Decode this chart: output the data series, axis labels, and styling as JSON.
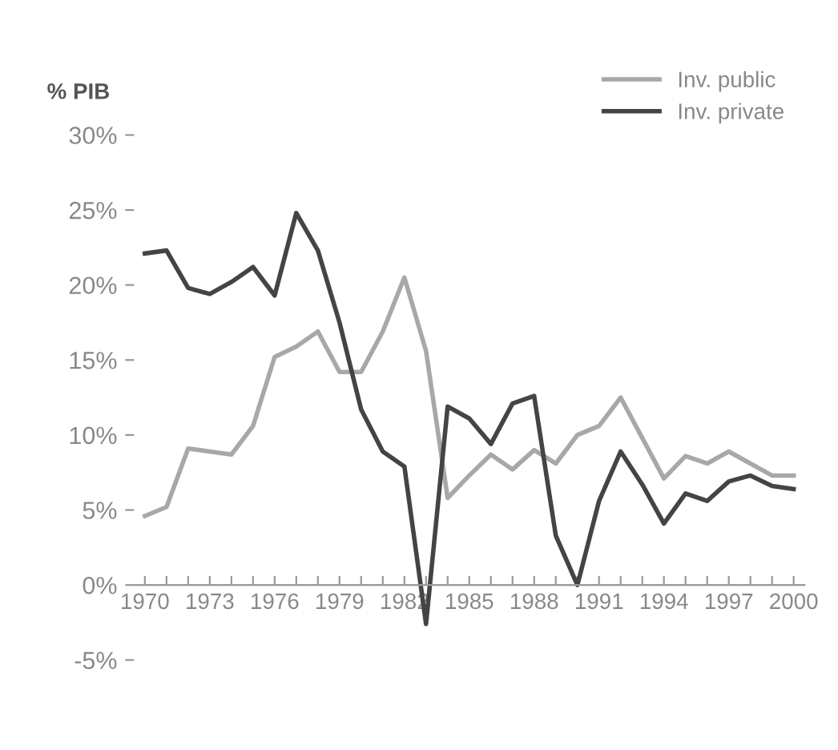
{
  "chart_data": {
    "type": "line",
    "ylabel": "% PIB",
    "x": [
      1970,
      1971,
      1972,
      1973,
      1974,
      1975,
      1976,
      1977,
      1978,
      1979,
      1980,
      1981,
      1982,
      1983,
      1984,
      1985,
      1986,
      1987,
      1988,
      1989,
      1990,
      1991,
      1992,
      1993,
      1994,
      1995,
      1996,
      1997,
      1998,
      1999,
      2000
    ],
    "series": [
      {
        "name": "Inv. public",
        "color": "#a8a8a8",
        "values": [
          4.6,
          5.2,
          9.1,
          8.9,
          8.7,
          10.6,
          15.2,
          15.9,
          16.9,
          14.2,
          14.2,
          16.9,
          20.5,
          15.6,
          5.8,
          7.3,
          8.7,
          7.7,
          9.0,
          8.1,
          10.0,
          10.6,
          12.5,
          9.8,
          7.1,
          8.6,
          8.1,
          8.9,
          8.1,
          7.3,
          7.3
        ]
      },
      {
        "name": "Inv. private",
        "color": "#444444",
        "values": [
          22.1,
          22.3,
          19.8,
          19.4,
          20.2,
          21.2,
          19.3,
          24.8,
          22.3,
          17.5,
          11.7,
          8.9,
          7.9,
          -2.6,
          11.9,
          11.1,
          9.4,
          12.1,
          12.6,
          3.3,
          0.0,
          5.6,
          8.9,
          6.7,
          4.1,
          6.1,
          5.6,
          6.9,
          7.3,
          6.6,
          6.4
        ]
      }
    ],
    "ylim": [
      -5,
      30
    ],
    "yticks": [
      {
        "value": -5,
        "label": "-5%"
      },
      {
        "value": 0,
        "label": "0%"
      },
      {
        "value": 5,
        "label": "5%"
      },
      {
        "value": 10,
        "label": "10%"
      },
      {
        "value": 15,
        "label": "15%"
      },
      {
        "value": 20,
        "label": "20%"
      },
      {
        "value": 25,
        "label": "25%"
      },
      {
        "value": 30,
        "label": "30%"
      }
    ],
    "xlim": [
      1969.5,
      2000.5
    ],
    "xticks": [
      1970,
      {
        "value": 1971,
        "label": null
      },
      {
        "value": 1972,
        "label": null
      },
      1973,
      {
        "value": 1974,
        "label": null
      },
      {
        "value": 1975,
        "label": null
      },
      1976,
      {
        "value": 1977,
        "label": null
      },
      {
        "value": 1978,
        "label": null
      },
      1979,
      {
        "value": 1980,
        "label": null
      },
      {
        "value": 1981,
        "label": null
      },
      1982,
      {
        "value": 1983,
        "label": null
      },
      {
        "value": 1984,
        "label": null
      },
      1985,
      {
        "value": 1986,
        "label": null
      },
      {
        "value": 1987,
        "label": null
      },
      1988,
      {
        "value": 1989,
        "label": null
      },
      {
        "value": 1990,
        "label": null
      },
      1991,
      {
        "value": 1992,
        "label": null
      },
      {
        "value": 1993,
        "label": null
      },
      1994,
      {
        "value": 1995,
        "label": null
      },
      {
        "value": 1996,
        "label": null
      },
      1997,
      {
        "value": 1998,
        "label": null
      },
      {
        "value": 1999,
        "label": null
      },
      2000
    ],
    "legend": "top right",
    "grid": false,
    "marker": "none",
    "line_style": "solid"
  }
}
